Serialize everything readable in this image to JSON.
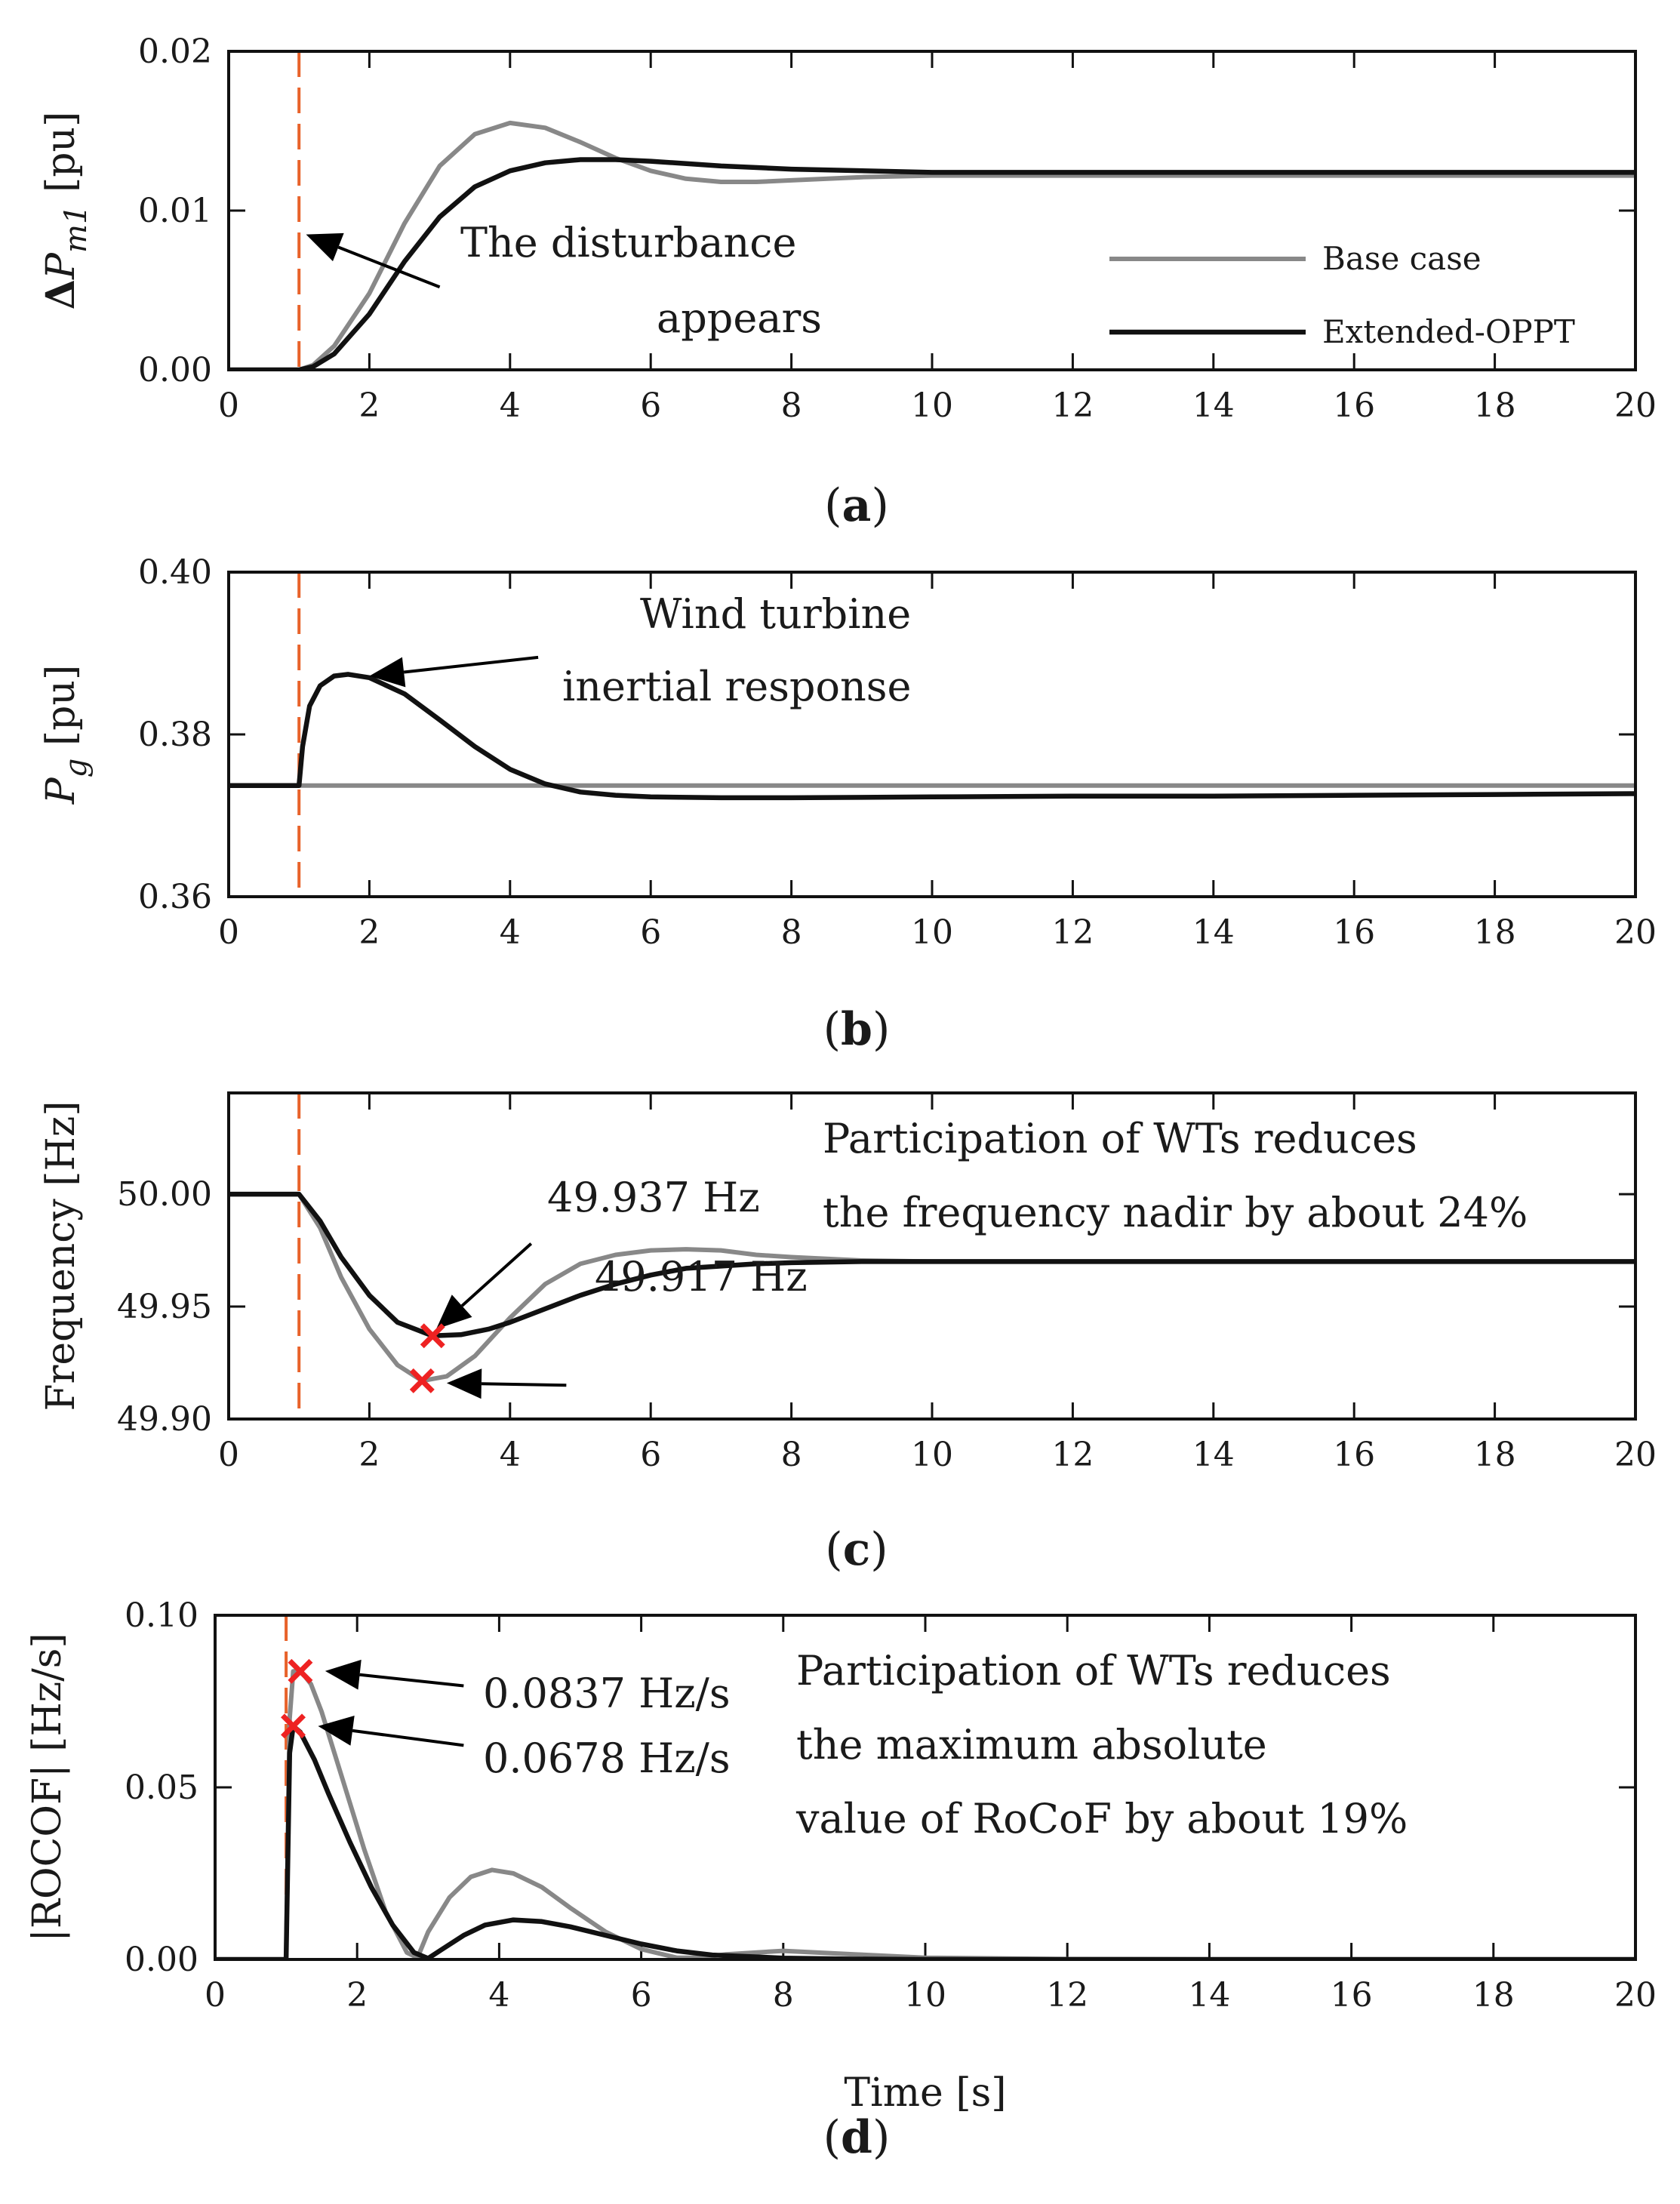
{
  "colors": {
    "base": "#888888",
    "extended": "#111111",
    "disturbance": "#e8622a",
    "marker": "#ee2222",
    "frame": "#111111"
  },
  "legend": {
    "base": "Base case",
    "extended": "Extended-OPPT"
  },
  "chart_data": [
    {
      "id": "a",
      "type": "line",
      "caption_letter": "a",
      "ylabel": "ΔP",
      "ylabel_sub": "m1",
      "ylabel_unit": " [pu]",
      "xlim": [
        0,
        20
      ],
      "ylim": [
        0,
        0.02
      ],
      "xticks": [
        "0",
        "2",
        "4",
        "6",
        "8",
        "10",
        "12",
        "14",
        "16",
        "18",
        "20"
      ],
      "yticks": [
        "0.00",
        "0.01",
        "0.02"
      ],
      "disturbance_t": 1.0,
      "series": [
        {
          "name": "Base case",
          "x": [
            0,
            1,
            1.2,
            1.5,
            2,
            2.5,
            3,
            3.5,
            4,
            4.5,
            5,
            5.5,
            6,
            6.5,
            7,
            7.5,
            8,
            9,
            10,
            12,
            14,
            16,
            18,
            20
          ],
          "y": [
            0,
            0,
            0.0003,
            0.0015,
            0.0048,
            0.0092,
            0.0128,
            0.0148,
            0.0155,
            0.0152,
            0.0143,
            0.0133,
            0.0125,
            0.012,
            0.0118,
            0.0118,
            0.0119,
            0.0121,
            0.0122,
            0.0122,
            0.0122,
            0.0122,
            0.0122,
            0.0122
          ]
        },
        {
          "name": "Extended-OPPT",
          "x": [
            0,
            1,
            1.2,
            1.5,
            2,
            2.5,
            3,
            3.5,
            4,
            4.5,
            5,
            5.5,
            6,
            7,
            8,
            10,
            12,
            14,
            16,
            18,
            20
          ],
          "y": [
            0,
            0,
            0.0002,
            0.001,
            0.0035,
            0.0068,
            0.0096,
            0.0115,
            0.0125,
            0.013,
            0.0132,
            0.0132,
            0.0131,
            0.0128,
            0.0126,
            0.0124,
            0.0124,
            0.0124,
            0.0124,
            0.0124,
            0.0124
          ]
        }
      ],
      "annotations": [
        {
          "lines": [
            "The disturbance",
            "appears"
          ],
          "arrow_from": [
            3.0,
            0.0052
          ],
          "arrow_to": [
            1.1,
            0.0085
          ]
        }
      ],
      "markers": []
    },
    {
      "id": "b",
      "type": "line",
      "caption_letter": "b",
      "ylabel": "P",
      "ylabel_sub": "g",
      "ylabel_unit": " [pu]",
      "xlim": [
        0,
        20
      ],
      "ylim": [
        0.36,
        0.4
      ],
      "xticks": [
        "0",
        "2",
        "4",
        "6",
        "8",
        "10",
        "12",
        "14",
        "16",
        "18",
        "20"
      ],
      "yticks": [
        "0.36",
        "0.38",
        "0.40"
      ],
      "disturbance_t": 1.0,
      "series": [
        {
          "name": "Base case",
          "x": [
            0,
            20
          ],
          "y": [
            0.3737,
            0.3737
          ]
        },
        {
          "name": "Extended-OPPT",
          "x": [
            0,
            1,
            1.05,
            1.15,
            1.3,
            1.5,
            1.7,
            2,
            2.5,
            3,
            3.5,
            4,
            4.5,
            5,
            5.5,
            6,
            7,
            8,
            10,
            12,
            14,
            16,
            18,
            20
          ],
          "y": [
            0.3737,
            0.3737,
            0.3785,
            0.3835,
            0.386,
            0.3872,
            0.3874,
            0.387,
            0.385,
            0.3818,
            0.3785,
            0.3757,
            0.3739,
            0.3729,
            0.3725,
            0.3723,
            0.3722,
            0.3722,
            0.3723,
            0.3724,
            0.3724,
            0.3725,
            0.3726,
            0.3727
          ]
        }
      ],
      "annotations": [
        {
          "lines": [
            "Wind turbine",
            "inertial response"
          ],
          "arrow_from": [
            4.4,
            0.3895
          ],
          "arrow_to": [
            2.0,
            0.3872
          ]
        }
      ],
      "markers": []
    },
    {
      "id": "c",
      "type": "line",
      "caption_letter": "c",
      "ylabel": "Frequency [Hz]",
      "ylabel_sub": "",
      "ylabel_unit": "",
      "xlim": [
        0,
        20
      ],
      "ylim": [
        49.9,
        50.045
      ],
      "xticks": [
        "0",
        "2",
        "4",
        "6",
        "8",
        "10",
        "12",
        "14",
        "16",
        "18",
        "20"
      ],
      "yticks": [
        "49.90",
        "49.95",
        "50.00"
      ],
      "ytick_values": [
        49.9,
        49.95,
        50.0
      ],
      "disturbance_t": 1.0,
      "series": [
        {
          "name": "Base case",
          "x": [
            0,
            1,
            1.3,
            1.6,
            2,
            2.4,
            2.75,
            3.1,
            3.5,
            4,
            4.5,
            5,
            5.5,
            6,
            6.5,
            7,
            7.5,
            8,
            9,
            10,
            12,
            14,
            16,
            18,
            20
          ],
          "y": [
            50.0,
            50.0,
            49.985,
            49.963,
            49.94,
            49.924,
            49.917,
            49.919,
            49.928,
            49.945,
            49.96,
            49.969,
            49.973,
            49.975,
            49.9755,
            49.975,
            49.973,
            49.972,
            49.9705,
            49.97,
            49.97,
            49.97,
            49.97,
            49.97,
            49.97
          ]
        },
        {
          "name": "Extended-OPPT",
          "x": [
            0,
            1,
            1.3,
            1.6,
            2,
            2.4,
            2.9,
            3.3,
            3.7,
            4,
            4.5,
            5,
            5.5,
            6,
            6.5,
            7,
            7.5,
            8,
            9,
            10,
            12,
            14,
            16,
            18,
            20
          ],
          "y": [
            50.0,
            50.0,
            49.988,
            49.972,
            49.955,
            49.943,
            49.937,
            49.9375,
            49.94,
            49.943,
            49.949,
            49.955,
            49.96,
            49.964,
            49.967,
            49.968,
            49.969,
            49.9695,
            49.97,
            49.97,
            49.97,
            49.97,
            49.97,
            49.97,
            49.97
          ]
        }
      ],
      "annotations": [
        {
          "lines": [
            "49.937 Hz"
          ],
          "arrow_from": [
            4.3,
            49.978
          ],
          "arrow_to": [
            2.95,
            49.94
          ]
        },
        {
          "lines": [
            "49.917 Hz"
          ],
          "arrow_from": [
            4.8,
            49.915
          ],
          "arrow_to": [
            3.1,
            49.916
          ]
        },
        {
          "lines": [
            "Participation of WTs reduces",
            "the frequency nadir by about 24%"
          ],
          "arrow_from": null,
          "arrow_to": null
        }
      ],
      "markers": [
        {
          "x": 2.9,
          "y": 49.937,
          "label": "49.937 Hz"
        },
        {
          "x": 2.75,
          "y": 49.917,
          "label": "49.917 Hz"
        }
      ]
    },
    {
      "id": "d",
      "type": "line",
      "caption_letter": "d",
      "ylabel": "|ROCOF| [Hz/s]",
      "ylabel_sub": "",
      "ylabel_unit": "",
      "xlabel": "Time [s]",
      "xlim": [
        0,
        20
      ],
      "ylim": [
        0,
        0.1
      ],
      "xticks": [
        "0",
        "2",
        "4",
        "6",
        "8",
        "10",
        "12",
        "14",
        "16",
        "18",
        "20"
      ],
      "yticks": [
        "0.00",
        "0.05",
        "0.10"
      ],
      "disturbance_t": 1.0,
      "series": [
        {
          "name": "Base case",
          "x": [
            0,
            1,
            1.05,
            1.1,
            1.2,
            1.35,
            1.5,
            1.8,
            2.1,
            2.4,
            2.7,
            2.85,
            3.0,
            3.3,
            3.6,
            3.9,
            4.2,
            4.6,
            5,
            5.5,
            6,
            6.5,
            6.8,
            7.2,
            8,
            9,
            10,
            12,
            14,
            16,
            18,
            20
          ],
          "y": [
            0,
            0,
            0.07,
            0.0837,
            0.084,
            0.08,
            0.072,
            0.052,
            0.032,
            0.014,
            0.002,
            0.0005,
            0.008,
            0.018,
            0.024,
            0.026,
            0.025,
            0.021,
            0.015,
            0.008,
            0.003,
            0.0005,
            0.0005,
            0.0015,
            0.0025,
            0.0015,
            0.0005,
            0.0001,
            0,
            0,
            0,
            0
          ]
        },
        {
          "name": "Extended-OPPT",
          "x": [
            0,
            1,
            1.05,
            1.1,
            1.2,
            1.4,
            1.6,
            1.9,
            2.2,
            2.5,
            2.8,
            3.0,
            3.2,
            3.5,
            3.8,
            4.2,
            4.6,
            5,
            5.5,
            6,
            6.5,
            7,
            8,
            9,
            10,
            12,
            14,
            16,
            18,
            20
          ],
          "y": [
            0,
            0,
            0.06,
            0.0678,
            0.066,
            0.058,
            0.048,
            0.034,
            0.021,
            0.01,
            0.002,
            0.0003,
            0.003,
            0.007,
            0.01,
            0.0115,
            0.011,
            0.0095,
            0.007,
            0.0045,
            0.0025,
            0.0013,
            0.0004,
            0.0001,
            0,
            0,
            0,
            0,
            0,
            0
          ]
        }
      ],
      "annotations": [
        {
          "lines": [
            "0.0837 Hz/s"
          ],
          "arrow_from": [
            3.5,
            0.0795
          ],
          "arrow_to": [
            1.55,
            0.0838
          ]
        },
        {
          "lines": [
            "0.0678 Hz/s"
          ],
          "arrow_from": [
            3.5,
            0.0622
          ],
          "arrow_to": [
            1.45,
            0.0678
          ]
        },
        {
          "lines": [
            "Participation of WTs reduces",
            "the maximum absolute",
            "value of RoCoF by about 19%"
          ],
          "arrow_from": null,
          "arrow_to": null
        }
      ],
      "markers": [
        {
          "x": 1.2,
          "y": 0.0837,
          "label": "0.0837 Hz/s"
        },
        {
          "x": 1.1,
          "y": 0.0678,
          "label": "0.0678 Hz/s"
        }
      ]
    }
  ]
}
